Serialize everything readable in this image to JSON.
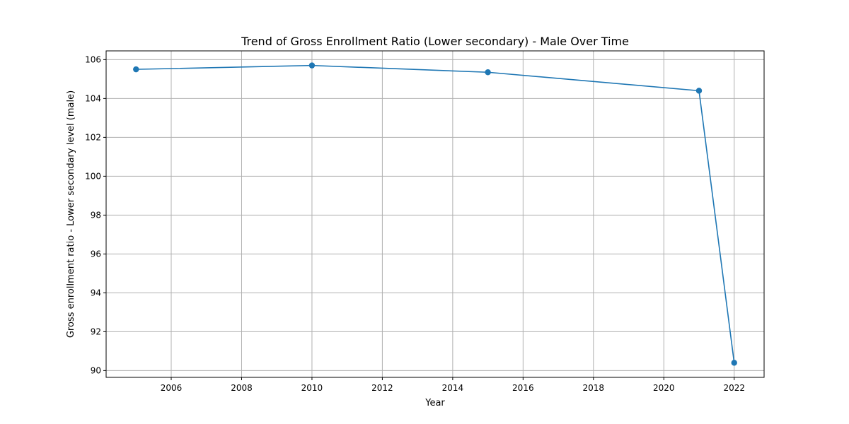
{
  "chart_data": {
    "type": "line",
    "title": "Trend of Gross Enrollment Ratio (Lower secondary) - Male Over Time",
    "xlabel": "Year",
    "ylabel": "Gross enrollment ratio - Lower secondary level (male)",
    "xlim": [
      2004.15,
      2022.85
    ],
    "ylim": [
      89.65,
      106.45
    ],
    "xticks": [
      2006,
      2008,
      2010,
      2012,
      2014,
      2016,
      2018,
      2020,
      2022
    ],
    "yticks": [
      90,
      92,
      94,
      96,
      98,
      100,
      102,
      104,
      106
    ],
    "grid": true,
    "series": [
      {
        "color": "#1f77b4",
        "marker": "circle",
        "x": [
          2005,
          2010,
          2015,
          2021,
          2022
        ],
        "y": [
          105.5,
          105.7,
          105.35,
          104.4,
          90.4
        ]
      }
    ]
  }
}
